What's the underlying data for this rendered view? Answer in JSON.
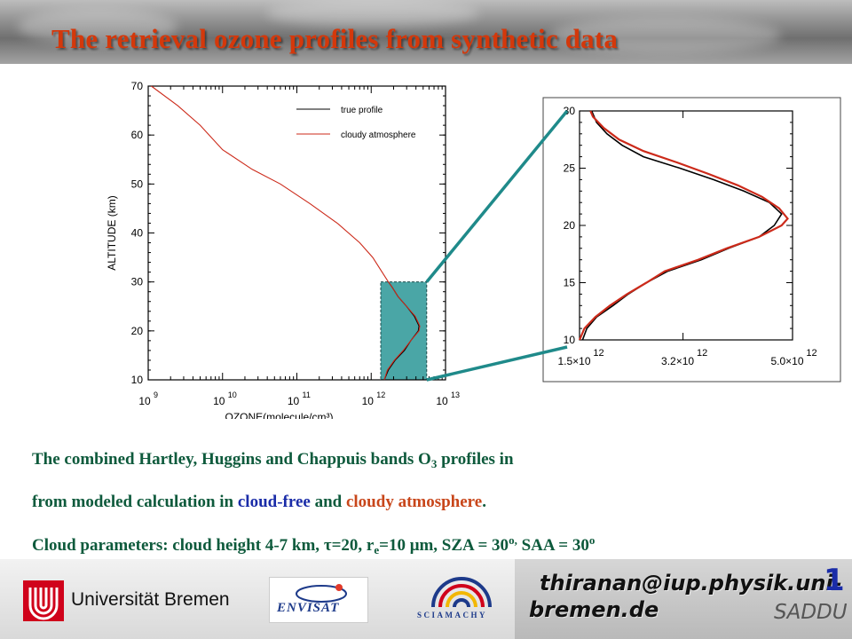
{
  "title": "The retrieval ozone profiles from synthetic data",
  "chart_data": [
    {
      "type": "line",
      "xlabel": "OZONE(molecule/cm³)",
      "ylabel": "ALTITUDE (km)",
      "x_scale": "log",
      "xlim": [
        1000000000.0,
        10000000000000.0
      ],
      "ylim": [
        10,
        70
      ],
      "x_ticks": [
        {
          "value": 1000000000.0,
          "base": "10",
          "exp": "9"
        },
        {
          "value": 10000000000.0,
          "base": "10",
          "exp": "10"
        },
        {
          "value": 100000000000.0,
          "base": "10",
          "exp": "11"
        },
        {
          "value": 1000000000000.0,
          "base": "10",
          "exp": "12"
        },
        {
          "value": 10000000000000.0,
          "base": "10",
          "exp": "13"
        }
      ],
      "y_ticks": [
        "10",
        "20",
        "30",
        "40",
        "50",
        "60",
        "70"
      ],
      "legend_position": "top-right",
      "series": [
        {
          "name": "true profile",
          "color": "#000000",
          "points": [
            [
              1500000000000.0,
              10
            ],
            [
              1700000000000.0,
              12
            ],
            [
              2100000000000.0,
              14
            ],
            [
              2800000000000.0,
              16
            ],
            [
              3400000000000.0,
              18
            ],
            [
              4300000000000.0,
              20
            ],
            [
              4400000000000.0,
              21
            ],
            [
              3800000000000.0,
              23
            ],
            [
              3000000000000.0,
              25
            ],
            [
              2300000000000.0,
              27
            ],
            [
              1900000000000.0,
              29
            ],
            [
              1700000000000.0,
              30
            ]
          ]
        },
        {
          "name": "cloudy atmosphere",
          "color": "#cc2a1a",
          "points": [
            [
              1500000000000.0,
              10
            ],
            [
              1650000000000.0,
              12
            ],
            [
              2050000000000.0,
              14
            ],
            [
              2700000000000.0,
              16
            ],
            [
              3400000000000.0,
              18
            ],
            [
              4400000000000.0,
              20
            ],
            [
              4500000000000.0,
              21
            ],
            [
              3900000000000.0,
              23
            ],
            [
              3000000000000.0,
              25
            ],
            [
              2300000000000.0,
              27
            ],
            [
              1900000000000.0,
              29
            ],
            [
              1700000000000.0,
              30
            ],
            [
              1400000000000.0,
              32
            ],
            [
              1050000000000.0,
              35
            ],
            [
              700000000000.0,
              38
            ],
            [
              350000000000.0,
              42
            ],
            [
              150000000000.0,
              46
            ],
            [
              60000000000.0,
              50
            ],
            [
              25000000000.0,
              53
            ],
            [
              10000000000.0,
              57
            ],
            [
              5000000000.0,
              62
            ],
            [
              2500000000.0,
              66
            ],
            [
              1100000000.0,
              70
            ]
          ]
        }
      ],
      "highlight_box": {
        "x_range": [
          1500000000000.0,
          5000000000000.0
        ],
        "y_range": [
          10,
          30
        ],
        "color": "#4aa6a6"
      }
    },
    {
      "type": "line",
      "title": "",
      "xlim": [
        1500000000000.0,
        5000000000000.0
      ],
      "ylim": [
        10,
        30
      ],
      "x_ticks": [
        {
          "value": 1500000000000.0,
          "base": "1.5×10",
          "exp": "12"
        },
        {
          "value": 3200000000000.0,
          "base": "3.2×10",
          "exp": "12"
        },
        {
          "value": 5000000000000.0,
          "base": "5.0×10",
          "exp": "12"
        }
      ],
      "y_ticks": [
        "10",
        "15",
        "20",
        "25",
        "30"
      ],
      "series": [
        {
          "name": "true profile",
          "color": "#000000",
          "points": [
            [
              1550000000000.0,
              10
            ],
            [
              1620000000000.0,
              11
            ],
            [
              1780000000000.0,
              12
            ],
            [
              2050000000000.0,
              13
            ],
            [
              2300000000000.0,
              14
            ],
            [
              2600000000000.0,
              15
            ],
            [
              2950000000000.0,
              16
            ],
            [
              3500000000000.0,
              17
            ],
            [
              3950000000000.0,
              18
            ],
            [
              4450000000000.0,
              19
            ],
            [
              4700000000000.0,
              20
            ],
            [
              4820000000000.0,
              21
            ],
            [
              4620000000000.0,
              22
            ],
            [
              4200000000000.0,
              23
            ],
            [
              3700000000000.0,
              24
            ],
            [
              3150000000000.0,
              25
            ],
            [
              2550000000000.0,
              26
            ],
            [
              2200000000000.0,
              27
            ],
            [
              1950000000000.0,
              28
            ],
            [
              1780000000000.0,
              29
            ],
            [
              1700000000000.0,
              30
            ]
          ]
        },
        {
          "name": "cloudy atmosphere",
          "color": "#cc2a1a",
          "points": [
            [
              1500000000000.0,
              10
            ],
            [
              1580000000000.0,
              11
            ],
            [
              1760000000000.0,
              12
            ],
            [
              2000000000000.0,
              13
            ],
            [
              2280000000000.0,
              14
            ],
            [
              2600000000000.0,
              15
            ],
            [
              2900000000000.0,
              16
            ],
            [
              3450000000000.0,
              17
            ],
            [
              3920000000000.0,
              18
            ],
            [
              4450000000000.0,
              19
            ],
            [
              4820000000000.0,
              20
            ],
            [
              4920000000000.0,
              20.6
            ],
            [
              4780000000000.0,
              21.5
            ],
            [
              4500000000000.0,
              22.5
            ],
            [
              4100000000000.0,
              23.5
            ],
            [
              3620000000000.0,
              24.5
            ],
            [
              3100000000000.0,
              25.5
            ],
            [
              2550000000000.0,
              26.5
            ],
            [
              2150000000000.0,
              27.5
            ],
            [
              1900000000000.0,
              28.5
            ],
            [
              1720000000000.0,
              29.5
            ],
            [
              1680000000000.0,
              30
            ]
          ]
        }
      ]
    }
  ],
  "caption": {
    "line1_a": "The combined Hartley, Huggins and Chappuis bands O",
    "line1_sub": "3",
    "line1_b": " profiles in",
    "line2_a": "from modeled calculation in ",
    "line2_blue": "cloud-free",
    "line2_b": " and ",
    "line2_red": "cloudy atmosphere",
    "line2_c": ".",
    "line3_a": "Cloud parameters: cloud height 4-7 km,  ",
    "line3_tau": "τ=20",
    "line3_b": ", r",
    "line3_sub": "e",
    "line3_c": "=10 ",
    "line3_mu": "μ",
    "line3_d": "m, SZA = 30",
    "line3_sup1": "o,",
    "line3_e": " SAA = 30",
    "line3_sup2": "o"
  },
  "footer": {
    "university": "Universität Bremen",
    "envisat": "ENVISAT",
    "sciamachy": "SCIAMACHY",
    "email_line1": "thiranan@iup.physik.uni-",
    "email_line2": "bremen.de",
    "page_number": "1",
    "tag": "SADDU"
  },
  "colors": {
    "title": "#d4380b",
    "caption_text": "#0e5a3c",
    "cloud_free": "#1a2ca8",
    "cloudy": "#c8461a",
    "box": "#4aa6a6",
    "connector": "#1f8a8a"
  }
}
